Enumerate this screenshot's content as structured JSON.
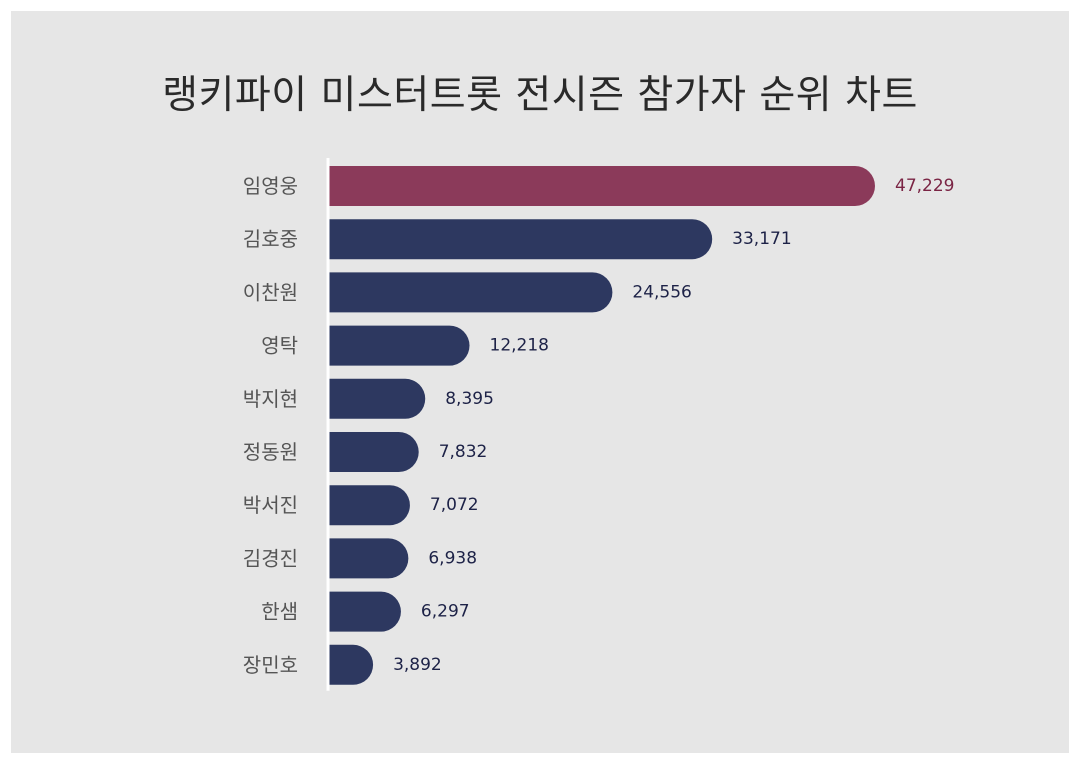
{
  "title": "랭키파이 미스터트롯 전시즌 참가자 순위 차트",
  "colors": {
    "highlight": "#8b3a5a",
    "bar": "#2d3860",
    "highlight_label": "#7a2444",
    "label": "#1d2247",
    "axis": "#ffffff"
  },
  "chart_data": {
    "type": "bar",
    "orientation": "horizontal",
    "title": "랭키파이 미스터트롯 전시즌 참가자 순위 차트",
    "xlabel": "",
    "ylabel": "",
    "grid": false,
    "categories": [
      "임영웅",
      "김호중",
      "이찬원",
      "영탁",
      "박지현",
      "정동원",
      "박서진",
      "김경진",
      "한샘",
      "장민호"
    ],
    "values": [
      47229,
      33171,
      24556,
      12218,
      8395,
      7832,
      7072,
      6938,
      6297,
      3892
    ],
    "value_labels": [
      "47,229",
      "33,171",
      "24,556",
      "12,218",
      "8,395",
      "7,832",
      "7,072",
      "6,938",
      "6,297",
      "3,892"
    ],
    "highlight_index": 0
  }
}
